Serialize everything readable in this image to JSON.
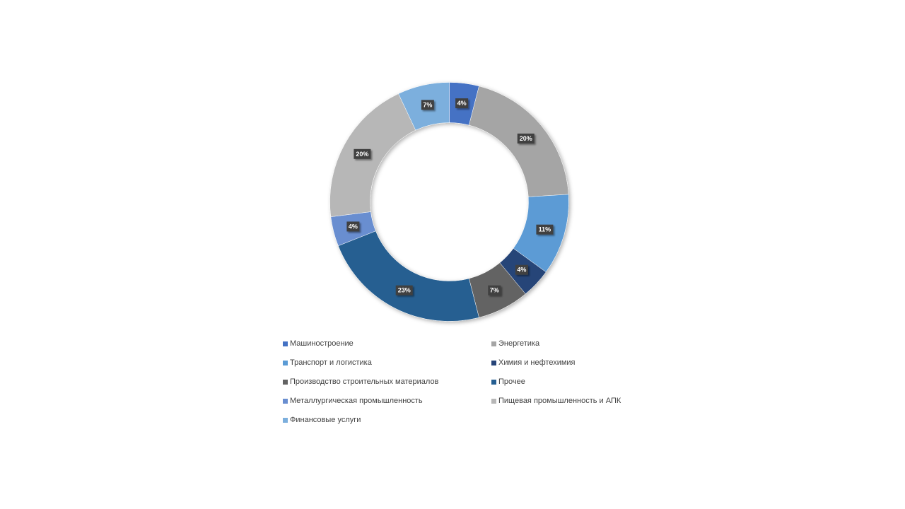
{
  "chart_data": {
    "type": "donut",
    "categories": [
      "Машиностроение",
      "Энергетика",
      "Транспорт и логистика",
      "Химия  и нефтехимия",
      "Производство строительных материалов",
      "Прочее",
      "Металлургическая промышленность",
      "Пищевая промышленность и АПК",
      "Финансовые услуги"
    ],
    "values": [
      4,
      20,
      11,
      4,
      7,
      23,
      4,
      20,
      7
    ],
    "data_labels": [
      "4%",
      "20%",
      "11%",
      "4%",
      "7%",
      "23%",
      "4%",
      "20%",
      "7%"
    ],
    "colors": [
      "#4472C4",
      "#A5A5A5",
      "#5B9BD5",
      "#264478",
      "#636363",
      "#255E91",
      "#698ED0",
      "#B7B7B7",
      "#7CAFDD"
    ],
    "unit": "%",
    "legend_position": "bottom"
  }
}
